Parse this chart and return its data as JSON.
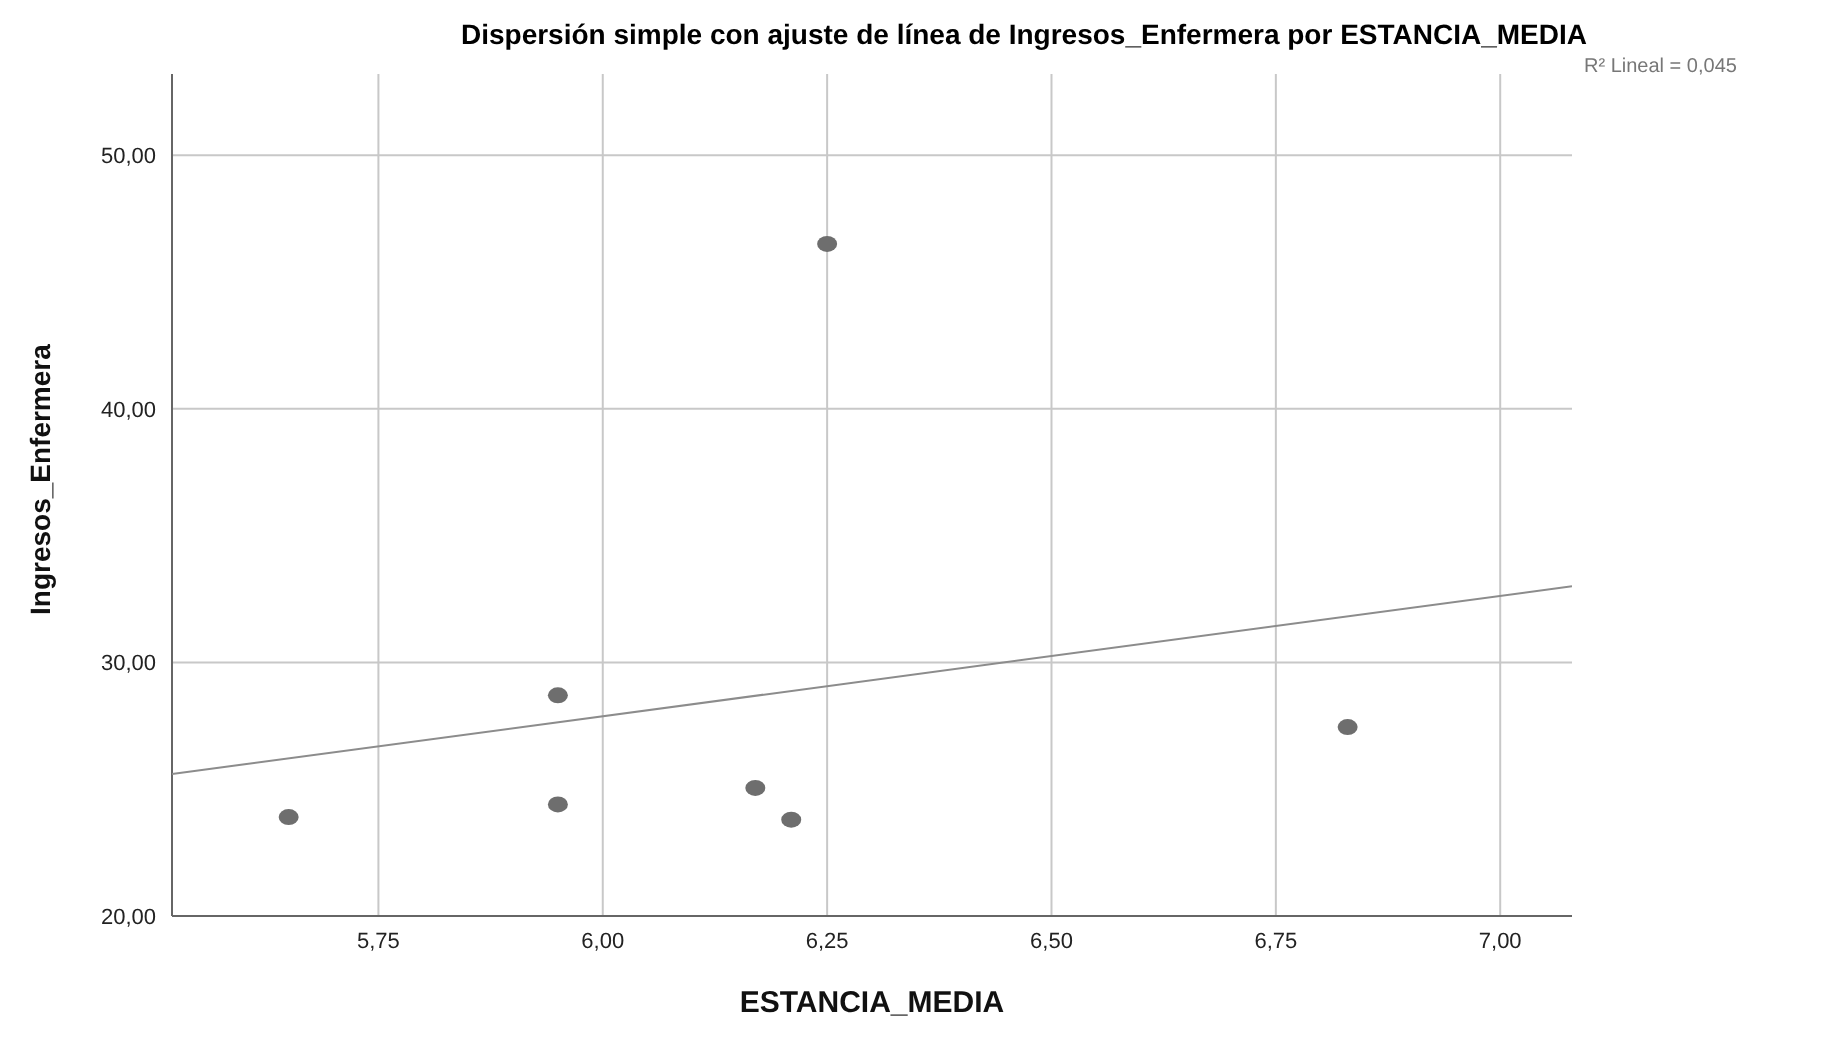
{
  "chart_data": {
    "type": "scatter",
    "title": "Dispersión simple con ajuste de línea de Ingresos_Enfermera por ESTANCIA_MEDIA",
    "xlabel": "ESTANCIA_MEDIA",
    "ylabel": "Ingresos_Enfermera",
    "annotations": [
      "R² Lineal = 0,045"
    ],
    "series": [
      {
        "marker": "circle",
        "color": "#6e6e6e",
        "x": [
          5.65,
          5.95,
          5.95,
          6.25,
          6.17,
          6.21,
          6.83
        ],
        "values": [
          23.9,
          28.7,
          24.4,
          46.5,
          25.05,
          23.8,
          27.45
        ]
      },
      {
        "type": "line",
        "color": "#8c8c8c",
        "x": [
          5.52,
          7.08
        ],
        "values": [
          25.6,
          33.0
        ]
      }
    ],
    "xlim": [
      5.52,
      7.08
    ],
    "ylim": [
      20,
      53.2
    ],
    "xticks": [
      {
        "value": 5.75,
        "label": "5,75"
      },
      {
        "value": 6,
        "label": "6,00"
      },
      {
        "value": 6.25,
        "label": "6,25"
      },
      {
        "value": 6.5,
        "label": "6,50"
      },
      {
        "value": 6.75,
        "label": "6,75"
      },
      {
        "value": 7,
        "label": "7,00"
      }
    ],
    "yticks": [
      {
        "value": 20,
        "label": "20,00"
      },
      {
        "value": 30,
        "label": "30,00"
      },
      {
        "value": 40,
        "label": "40,00"
      },
      {
        "value": 50,
        "label": "50,00"
      }
    ],
    "grid": true,
    "legend": false
  }
}
